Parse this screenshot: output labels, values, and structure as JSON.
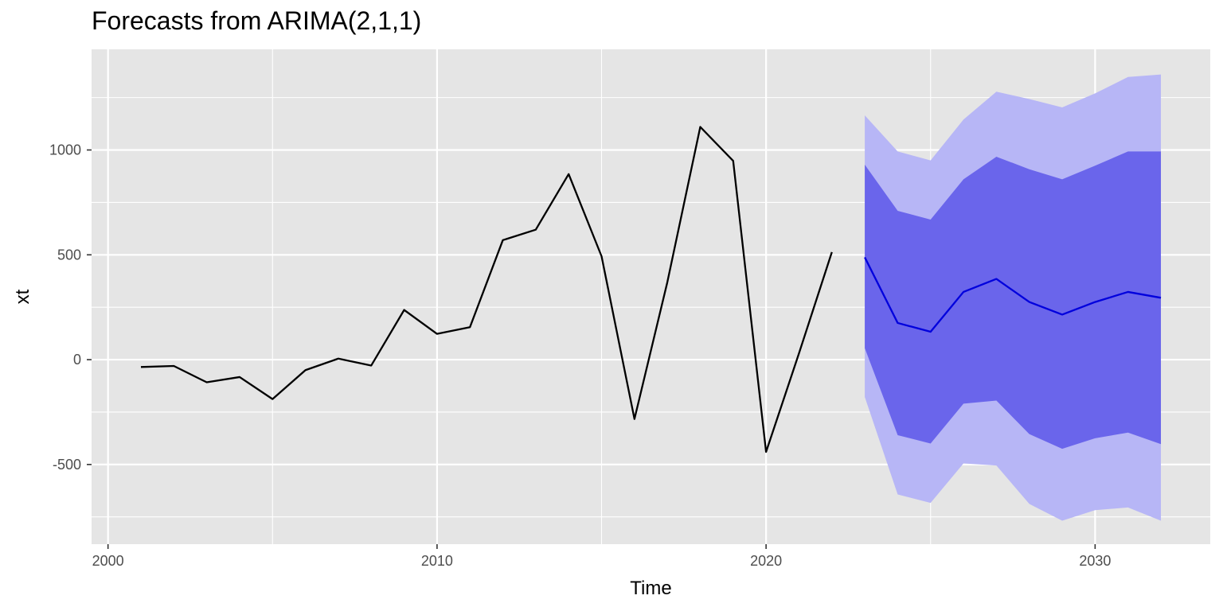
{
  "chart_data": {
    "type": "line",
    "title": "Forecasts from ARIMA(2,1,1)",
    "xlabel": "Time",
    "ylabel": "xt",
    "xlim": [
      1999.5,
      2033.5
    ],
    "ylim": [
      -880,
      1480
    ],
    "x_ticks": [
      2000,
      2010,
      2020,
      2030
    ],
    "y_ticks": [
      -500,
      0,
      500,
      1000
    ],
    "grid": true,
    "colors": {
      "panel_background": "#e5e5e5",
      "grid": "#ffffff",
      "history_line": "#000000",
      "forecast_line": "#0000dd",
      "band_80": "#6a65eb",
      "band_95": "#b7b6f6"
    },
    "series": [
      {
        "x": [
          2001,
          2002,
          2003,
          2004,
          2005,
          2006,
          2007,
          2008,
          2009,
          2010,
          2011,
          2012,
          2013,
          2014,
          2015,
          2016,
          2017,
          2018,
          2019,
          2020,
          2021,
          2022
        ],
        "values": [
          -35,
          -30,
          -108,
          -83,
          -188,
          -50,
          5,
          -28,
          237,
          123,
          155,
          570,
          620,
          885,
          493,
          -283,
          370,
          1110,
          948,
          -440,
          30,
          513
        ]
      },
      {
        "x": [
          2023,
          2024,
          2025,
          2026,
          2027,
          2028,
          2029,
          2030,
          2031,
          2032
        ],
        "values": [
          488,
          175,
          133,
          323,
          385,
          275,
          215,
          275,
          323,
          295
        ]
      }
    ],
    "intervals": [
      {
        "level": 95,
        "x": [
          2023,
          2024,
          2025,
          2026,
          2027,
          2028,
          2029,
          2030,
          2031,
          2032
        ],
        "lower": [
          -178,
          -643,
          -683,
          -495,
          -505,
          -688,
          -768,
          -718,
          -705,
          -768
        ],
        "upper": [
          1165,
          993,
          950,
          1145,
          1278,
          1243,
          1203,
          1270,
          1348,
          1360
        ]
      },
      {
        "level": 80,
        "x": [
          2023,
          2024,
          2025,
          2026,
          2027,
          2028,
          2029,
          2030,
          2031,
          2032
        ],
        "lower": [
          55,
          -360,
          -400,
          -210,
          -195,
          -355,
          -425,
          -375,
          -348,
          -403
        ],
        "upper": [
          930,
          710,
          668,
          860,
          968,
          908,
          860,
          925,
          993,
          993
        ]
      }
    ]
  }
}
